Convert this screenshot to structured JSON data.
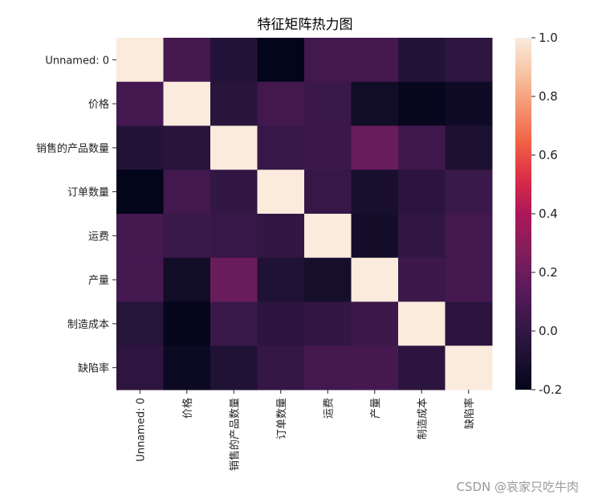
{
  "chart_data": {
    "type": "heatmap",
    "title": "特征矩阵热力图",
    "xlabel": "",
    "ylabel": "",
    "labels": [
      "Unnamed: 0",
      "价格",
      "销售的产品数量",
      "订单数量",
      "运费",
      "产量",
      "制造成本",
      "缺陷率"
    ],
    "matrix": [
      [
        1.0,
        0.07,
        -0.06,
        -0.2,
        0.06,
        0.07,
        -0.06,
        -0.02
      ],
      [
        0.07,
        1.0,
        -0.04,
        0.06,
        0.03,
        -0.14,
        -0.18,
        -0.15
      ],
      [
        -0.06,
        -0.04,
        1.0,
        0.02,
        0.04,
        0.19,
        0.05,
        -0.09
      ],
      [
        -0.2,
        0.06,
        0.0,
        1.0,
        0.02,
        -0.11,
        -0.03,
        0.03
      ],
      [
        0.07,
        0.03,
        0.02,
        0.0,
        1.0,
        -0.13,
        -0.01,
        0.06
      ],
      [
        0.07,
        -0.14,
        0.19,
        -0.08,
        -0.12,
        1.0,
        0.04,
        0.07
      ],
      [
        -0.05,
        -0.19,
        0.03,
        -0.03,
        0.0,
        0.04,
        1.0,
        -0.03
      ],
      [
        -0.02,
        -0.16,
        -0.08,
        0.01,
        0.06,
        0.07,
        -0.03,
        1.0
      ]
    ],
    "zlim": [
      -0.2,
      1.0
    ],
    "colorbar_ticks": [
      "1.0",
      "0.8",
      "0.6",
      "0.4",
      "0.2",
      "0.0",
      "-0.2"
    ],
    "colormap": "rocket",
    "grid": false
  },
  "watermark": "CSDN @哀家只吃牛肉"
}
